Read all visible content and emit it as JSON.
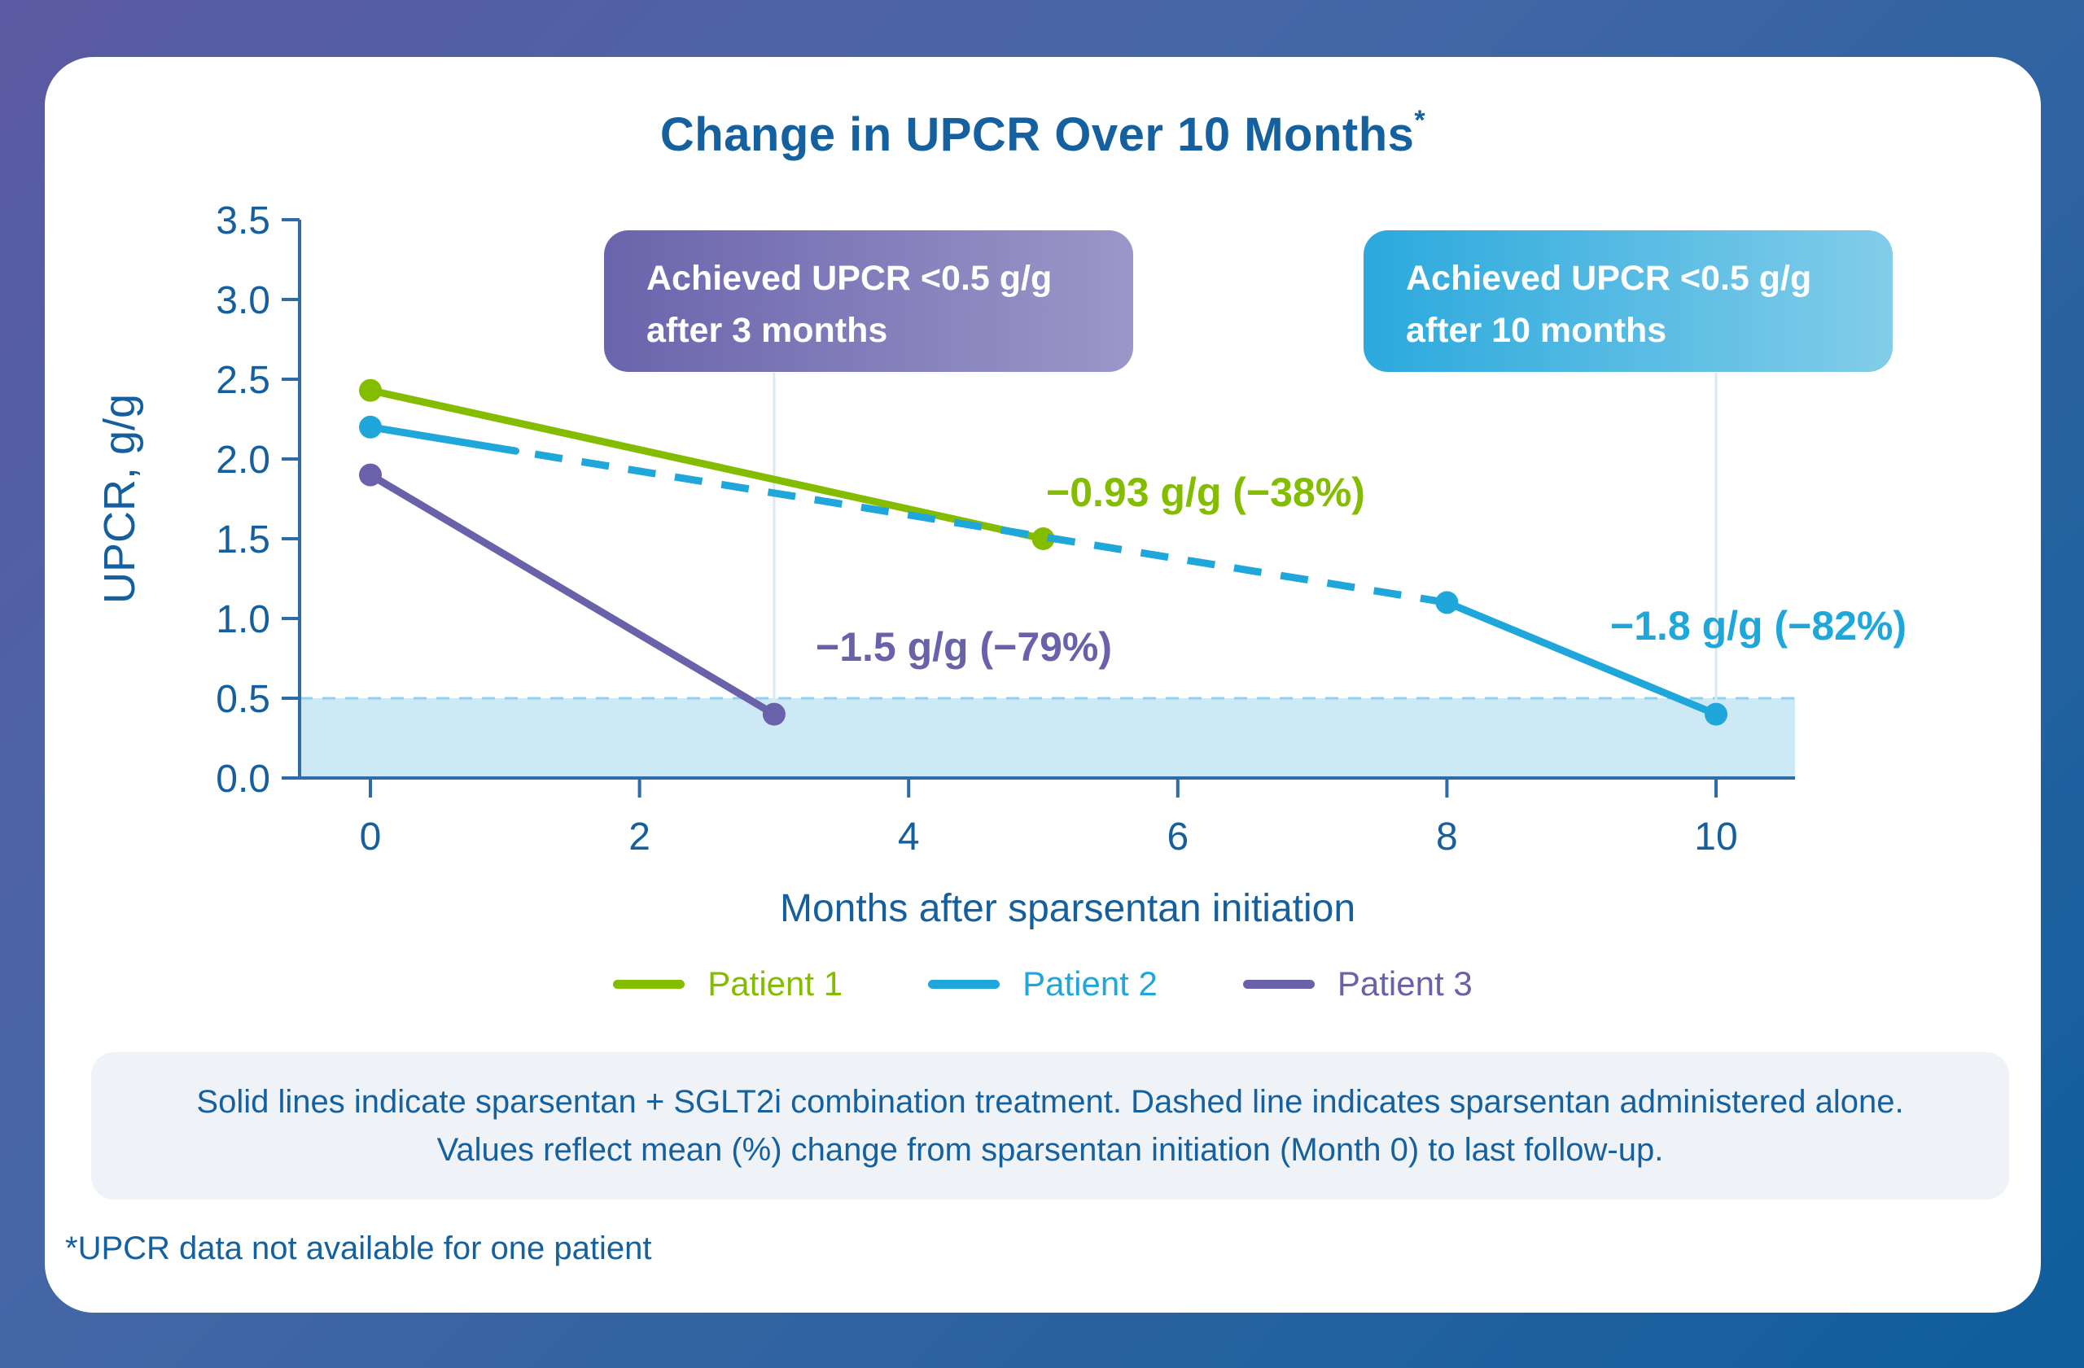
{
  "title": {
    "text": "Change in UPCR Over 10 Months",
    "asterisk": "*"
  },
  "chart_data": {
    "type": "line",
    "title": "Change in UPCR Over 10 Months",
    "xlabel": "Months after sparsentan initiation",
    "ylabel": "UPCR, g/g",
    "xlim": [
      0,
      10.6
    ],
    "ylim": [
      0,
      3.5
    ],
    "grid": false,
    "legend_position": "bottom",
    "xticks": [
      {
        "value": 0,
        "label": "0"
      },
      {
        "value": 2,
        "label": "2"
      },
      {
        "value": 4,
        "label": "4"
      },
      {
        "value": 6,
        "label": "6"
      },
      {
        "value": 8,
        "label": "8"
      },
      {
        "value": 10,
        "label": "10"
      }
    ],
    "yticks": [
      {
        "value": 3.5,
        "label": "3.5"
      },
      {
        "value": 3.0,
        "label": "3.0"
      },
      {
        "value": 2.5,
        "label": "2.5"
      },
      {
        "value": 2.0,
        "label": "2.0"
      },
      {
        "value": 1.5,
        "label": "1.5"
      },
      {
        "value": 1.0,
        "label": "1.0"
      },
      {
        "value": 0.5,
        "label": "0.5"
      },
      {
        "value": 0.0,
        "label": "0.0"
      }
    ],
    "target_band": {
      "from": 0,
      "to": 0.5,
      "fill": "#CDE9F6",
      "edge": "#8FD2EE"
    },
    "series": [
      {
        "name": "Patient 1",
        "color": "#84BD00",
        "segments": [
          {
            "style": "solid",
            "points": [
              [
                0,
                2.43
              ],
              [
                5,
                1.5
              ]
            ]
          }
        ],
        "markers": [
          [
            0,
            2.43
          ],
          [
            5,
            1.5
          ]
        ],
        "annotation": "−0.93 g/g (−38%)"
      },
      {
        "name": "Patient 2",
        "color": "#1FA7DC",
        "segments": [
          {
            "style": "solid",
            "points": [
              [
                0,
                2.2
              ],
              [
                1.08,
                2.05
              ]
            ]
          },
          {
            "style": "dashed",
            "points": [
              [
                1.08,
                2.05
              ],
              [
                8,
                1.1
              ]
            ]
          },
          {
            "style": "solid",
            "points": [
              [
                8,
                1.1
              ],
              [
                10,
                0.4
              ]
            ]
          }
        ],
        "markers": [
          [
            0,
            2.2
          ],
          [
            8,
            1.1
          ],
          [
            10,
            0.4
          ]
        ],
        "annotation": "−1.8 g/g (−82%)"
      },
      {
        "name": "Patient 3",
        "color": "#6961A9",
        "segments": [
          {
            "style": "solid",
            "points": [
              [
                0,
                1.9
              ],
              [
                3,
                0.4
              ]
            ]
          }
        ],
        "markers": [
          [
            0,
            1.9
          ],
          [
            3,
            0.4
          ]
        ],
        "annotation": "−1.5 g/g (−79%)"
      }
    ],
    "callouts": [
      {
        "line1": "Achieved UPCR <0.5 g/g",
        "line2": "after 3 months",
        "connector_month": 3,
        "connector_value": 0.4
      },
      {
        "line1": "Achieved UPCR <0.5 g/g",
        "line2": "after 10 months",
        "connector_month": 10,
        "connector_value": 0.4
      }
    ]
  },
  "footer_note": {
    "line1": "Solid lines indicate sparsentan + SGLT2i combination treatment. Dashed line indicates sparsentan administered alone.",
    "line2": "Values reflect mean (%) change from sparsentan initiation (Month 0) to last follow-up."
  },
  "footnote": "*UPCR data not available for one patient"
}
